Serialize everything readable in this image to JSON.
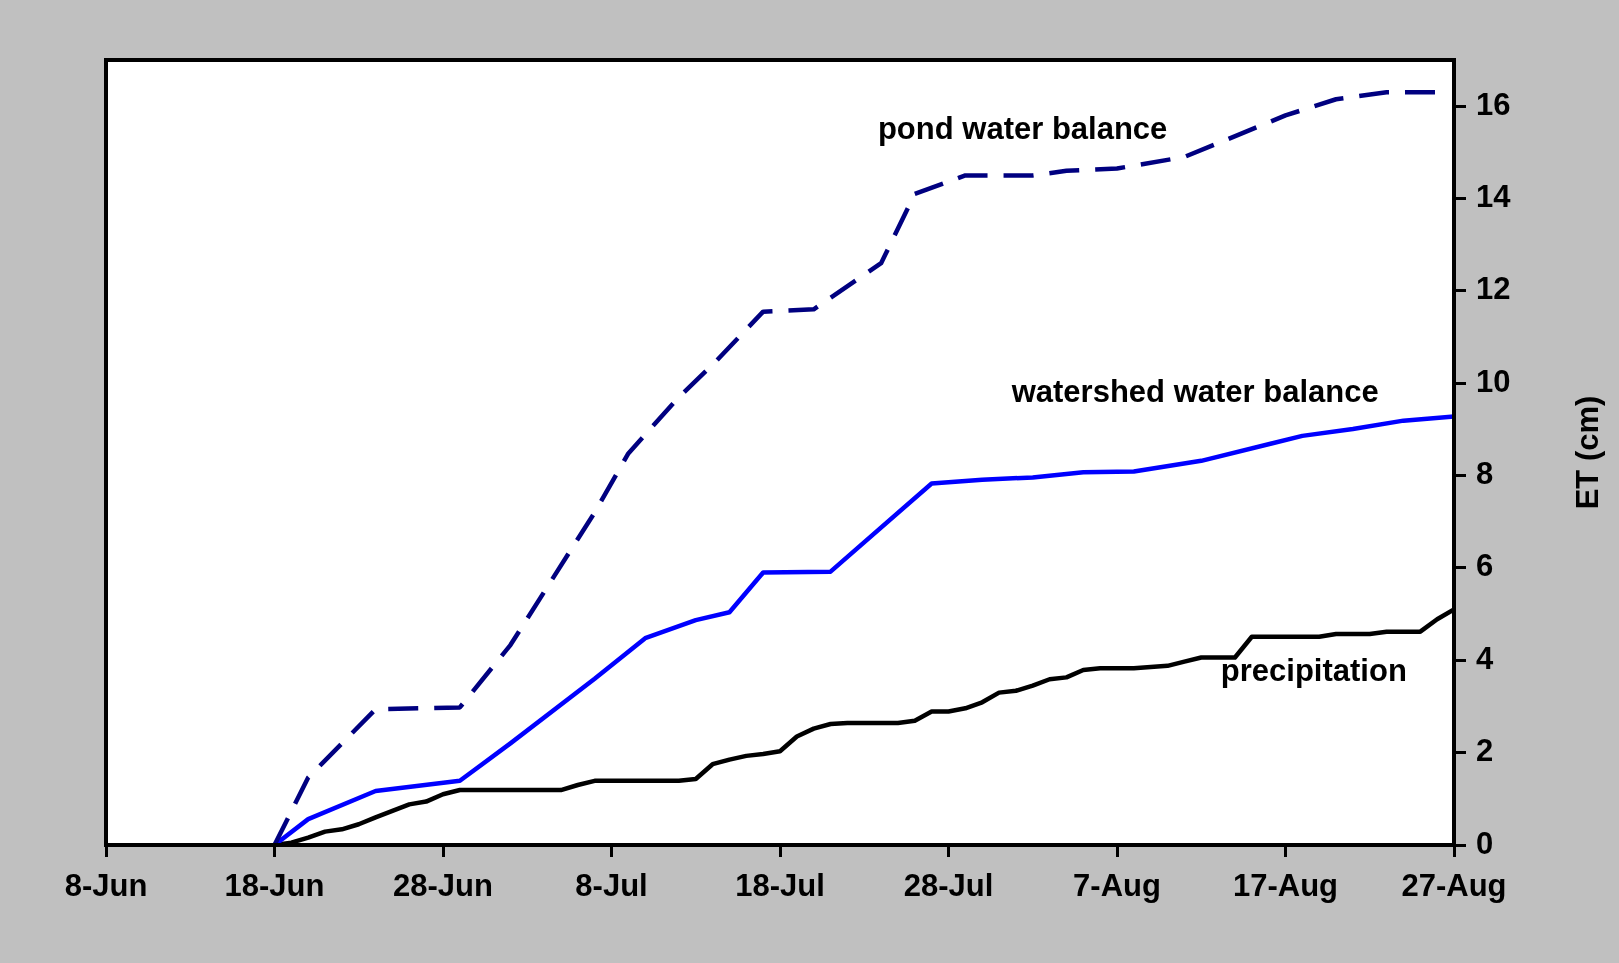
{
  "chart_data": {
    "type": "line",
    "ylabel": "ET (cm)",
    "xlim": [
      "--06-08",
      "--08-27"
    ],
    "xticks": [
      {
        "value": "--06-08",
        "label": "8-Jun"
      },
      {
        "value": "--06-18",
        "label": "18-Jun"
      },
      {
        "value": "--06-28",
        "label": "28-Jun"
      },
      {
        "value": "--07-08",
        "label": "8-Jul"
      },
      {
        "value": "--07-18",
        "label": "18-Jul"
      },
      {
        "value": "--07-28",
        "label": "28-Jul"
      },
      {
        "value": "--08-07",
        "label": "7-Aug"
      },
      {
        "value": "--08-17",
        "label": "17-Aug"
      },
      {
        "value": "--08-27",
        "label": "27-Aug"
      }
    ],
    "ylim": [
      0,
      17
    ],
    "yticks": [
      0,
      2,
      4,
      6,
      8,
      10,
      12,
      14,
      16
    ],
    "grid": false,
    "legend": false,
    "marker": "none",
    "series": [
      {
        "name": "pond water balance",
        "color": "#000080",
        "line_style": "dashed",
        "x": [
          "--06-18",
          "--06-20",
          "--06-24",
          "--06-29",
          "--07-02",
          "--07-07",
          "--07-09",
          "--07-12",
          "--07-14",
          "--07-17",
          "--07-20",
          "--07-24",
          "--07-26",
          "--07-29",
          "--08-02",
          "--08-04",
          "--08-07",
          "--08-11",
          "--08-17",
          "--08-20",
          "--08-23",
          "--08-26"
        ],
        "values": [
          0,
          1.46,
          2.94,
          2.98,
          4.33,
          7.2,
          8.48,
          9.7,
          10.4,
          11.55,
          11.6,
          12.6,
          14.1,
          14.5,
          14.5,
          14.6,
          14.65,
          14.9,
          15.8,
          16.15,
          16.3,
          16.3
        ]
      },
      {
        "name": "watershed water balance",
        "color": "#0000ff",
        "line_style": "solid",
        "x": [
          "--06-18",
          "--06-20",
          "--06-24",
          "--06-29",
          "--07-02",
          "--07-07",
          "--07-10",
          "--07-13",
          "--07-15",
          "--07-17",
          "--07-21",
          "--07-27",
          "--07-30",
          "--08-02",
          "--08-05",
          "--08-08",
          "--08-12",
          "--08-18",
          "--08-21",
          "--08-24",
          "--08-27"
        ],
        "values": [
          0,
          0.56,
          1.17,
          1.39,
          2.2,
          3.6,
          4.48,
          4.87,
          5.04,
          5.9,
          5.92,
          7.83,
          7.91,
          7.96,
          8.07,
          8.09,
          8.32,
          8.86,
          9.01,
          9.19,
          9.28
        ]
      },
      {
        "name": "precipitation",
        "color": "#000000",
        "line_style": "solid",
        "x": [
          "--06-18",
          "--06-19",
          "--06-20",
          "--06-21",
          "--06-22",
          "--06-23",
          "--06-24",
          "--06-25",
          "--06-26",
          "--06-27",
          "--06-28",
          "--06-29",
          "--07-05",
          "--07-06",
          "--07-07",
          "--07-12",
          "--07-13",
          "--07-14",
          "--07-15",
          "--07-16",
          "--07-17",
          "--07-18",
          "--07-19",
          "--07-20",
          "--07-21",
          "--07-22",
          "--07-25",
          "--07-26",
          "--07-27",
          "--07-28",
          "--07-29",
          "--07-30",
          "--07-31",
          "--08-01",
          "--08-02",
          "--08-03",
          "--08-04",
          "--08-05",
          "--08-06",
          "--08-08",
          "--08-10",
          "--08-11",
          "--08-12",
          "--08-14",
          "--08-15",
          "--08-19",
          "--08-20",
          "--08-22",
          "--08-23",
          "--08-25",
          "--08-26",
          "--08-27"
        ],
        "values": [
          0,
          0.05,
          0.16,
          0.29,
          0.34,
          0.45,
          0.6,
          0.74,
          0.88,
          0.94,
          1.1,
          1.19,
          1.19,
          1.3,
          1.39,
          1.39,
          1.43,
          1.75,
          1.85,
          1.93,
          1.97,
          2.03,
          2.35,
          2.52,
          2.62,
          2.64,
          2.64,
          2.69,
          2.89,
          2.89,
          2.96,
          3.09,
          3.3,
          3.34,
          3.45,
          3.59,
          3.63,
          3.79,
          3.83,
          3.83,
          3.88,
          3.97,
          4.06,
          4.06,
          4.51,
          4.51,
          4.57,
          4.57,
          4.62,
          4.62,
          4.89,
          5.1
        ]
      }
    ]
  }
}
